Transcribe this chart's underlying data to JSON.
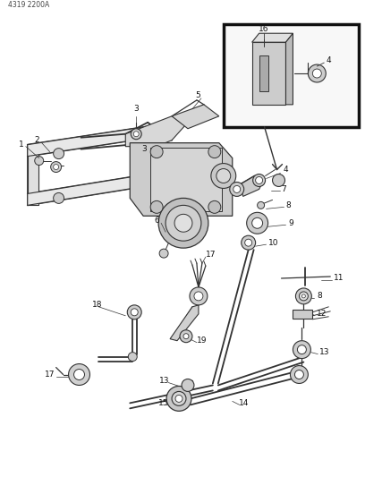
{
  "title_code": "4319 2200A",
  "bg_color": "#ffffff",
  "line_color": "#333333",
  "label_color": "#111111",
  "figsize": [
    4.08,
    5.33
  ],
  "dpi": 100
}
